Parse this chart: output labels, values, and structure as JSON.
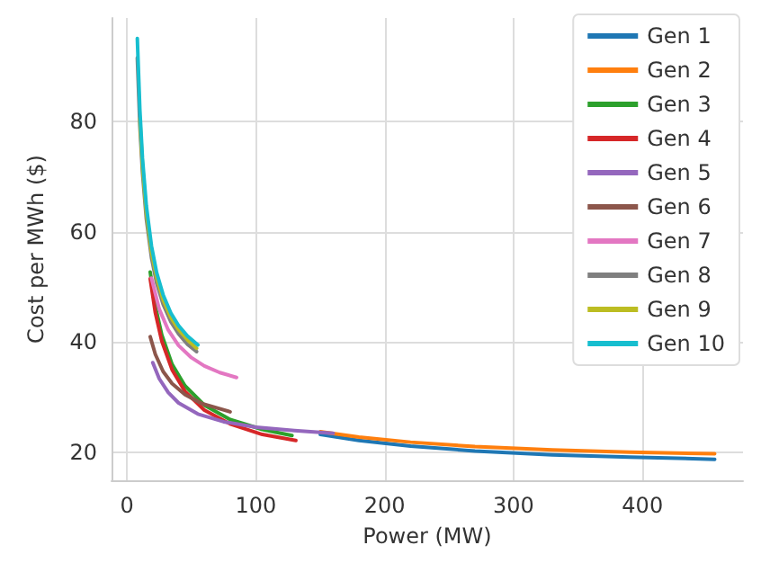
{
  "chart_data": {
    "type": "line",
    "xlabel": "Power (MW)",
    "ylabel": "Cost per MWh ($)",
    "xlim": [
      -12,
      478
    ],
    "ylim": [
      15,
      98.7
    ],
    "xticks": [
      0,
      100,
      200,
      300,
      400
    ],
    "yticks": [
      20,
      40,
      60,
      80
    ],
    "grid": true,
    "legend": "top right",
    "marker": "none",
    "line_style": "solid",
    "series": [
      {
        "name": "Gen 1",
        "color": "#1f77b4",
        "x": [
          150,
          180,
          220,
          270,
          330,
          390,
          456
        ],
        "values": [
          23.3,
          22.2,
          21.2,
          20.3,
          19.6,
          19.2,
          18.8
        ]
      },
      {
        "name": "Gen 2",
        "color": "#ff7f0e",
        "x": [
          150,
          180,
          220,
          270,
          330,
          390,
          456
        ],
        "values": [
          23.8,
          22.8,
          21.9,
          21.1,
          20.5,
          20.1,
          19.8
        ]
      },
      {
        "name": "Gen 3",
        "color": "#2ca02c",
        "x": [
          18,
          22,
          27,
          35,
          45,
          60,
          80,
          105,
          128
        ],
        "values": [
          52.7,
          46.5,
          41.3,
          36,
          32.1,
          28.6,
          26,
          24.2,
          23.1
        ]
      },
      {
        "name": "Gen 4",
        "color": "#d62728",
        "x": [
          18,
          22,
          27,
          35,
          45,
          60,
          80,
          105,
          131
        ],
        "values": [
          51.5,
          45.3,
          40.2,
          35,
          31.1,
          27.7,
          25.2,
          23.3,
          22.2
        ]
      },
      {
        "name": "Gen 5",
        "color": "#9467bd",
        "x": [
          20,
          25,
          32,
          40,
          55,
          75,
          100,
          130,
          160
        ],
        "values": [
          36.3,
          33.4,
          30.9,
          29,
          27,
          25.6,
          24.6,
          24,
          23.5
        ]
      },
      {
        "name": "Gen 6",
        "color": "#8c564b",
        "x": [
          18,
          22,
          28,
          35,
          45,
          58,
          80
        ],
        "values": [
          41,
          37.8,
          34.7,
          32.5,
          30.5,
          28.9,
          27.4
        ]
      },
      {
        "name": "Gen 7",
        "color": "#e377c2",
        "x": [
          19,
          25,
          32,
          40,
          50,
          60,
          72,
          85
        ],
        "values": [
          51.6,
          46,
          42.2,
          39.4,
          37.2,
          35.7,
          34.5,
          33.6
        ]
      },
      {
        "name": "Gen 8",
        "color": "#7f7f7f",
        "x": [
          8,
          10,
          12,
          15,
          19,
          23,
          28,
          34,
          40,
          47,
          54
        ],
        "values": [
          91.5,
          79,
          70.7,
          62.3,
          55.3,
          50.7,
          46.9,
          43.7,
          41.5,
          39.6,
          38.3
        ]
      },
      {
        "name": "Gen 9",
        "color": "#bcbd22",
        "x": [
          10,
          12,
          15,
          19,
          23,
          28,
          34,
          40,
          47,
          54
        ],
        "values": [
          80.5,
          72,
          63.5,
          56.3,
          51.7,
          47.7,
          44.5,
          42.3,
          40.4,
          38.9
        ]
      },
      {
        "name": "Gen 10",
        "color": "#17becf",
        "x": [
          8,
          10,
          12,
          15,
          19,
          23,
          28,
          34,
          40,
          47,
          55
        ],
        "values": [
          95,
          82,
          73.3,
          64.7,
          57.4,
          52.6,
          48.6,
          45.3,
          43,
          41.1,
          39.5
        ]
      }
    ]
  }
}
